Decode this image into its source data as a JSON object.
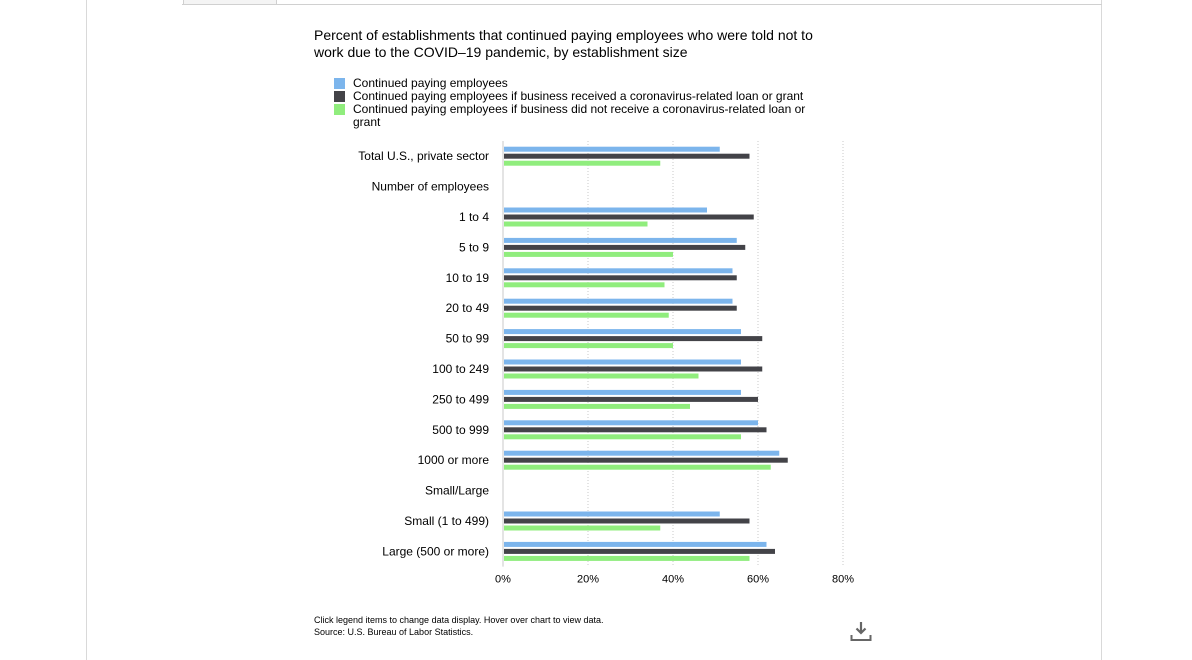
{
  "chart_data": {
    "type": "bar",
    "orientation": "horizontal",
    "title": "Percent of establishments that continued paying employees who were told not to work due to the COVID–19 pandemic, by establishment size",
    "categories": [
      "Total U.S., private sector",
      "Number of employees",
      "1 to 4",
      "5 to 9",
      "10 to 19",
      "20 to 49",
      "50 to 99",
      "100 to 249",
      "250 to 499",
      "500 to 999",
      "1000 or more",
      "Small/Large",
      "Small (1 to 499)",
      "Large (500 or more)"
    ],
    "series": [
      {
        "name": "Continued paying employees",
        "color": "#7cb5ec",
        "values": [
          51,
          null,
          48,
          55,
          54,
          54,
          56,
          56,
          56,
          60,
          65,
          null,
          51,
          62
        ]
      },
      {
        "name": "Continued paying employees if business received a coronavirus-related loan or grant",
        "color": "#434348",
        "values": [
          58,
          null,
          59,
          57,
          55,
          55,
          61,
          61,
          60,
          62,
          67,
          null,
          58,
          64
        ]
      },
      {
        "name": "Continued paying employees if business did not receive a coronavirus-related loan or grant",
        "color": "#90ed7d",
        "values": [
          37,
          null,
          34,
          40,
          38,
          39,
          40,
          46,
          44,
          56,
          63,
          null,
          37,
          58
        ]
      }
    ],
    "xlim": [
      0,
      80
    ],
    "x_ticks": [
      "0%",
      "20%",
      "40%",
      "60%",
      "80%"
    ],
    "grid": true,
    "legend_position": "top-left"
  },
  "footer": {
    "instructions": "Click legend items to change data display. Hover over chart to view data.",
    "source": "Source: U.S. Bureau of Labor Statistics."
  },
  "icons": {
    "download": "download-icon"
  }
}
